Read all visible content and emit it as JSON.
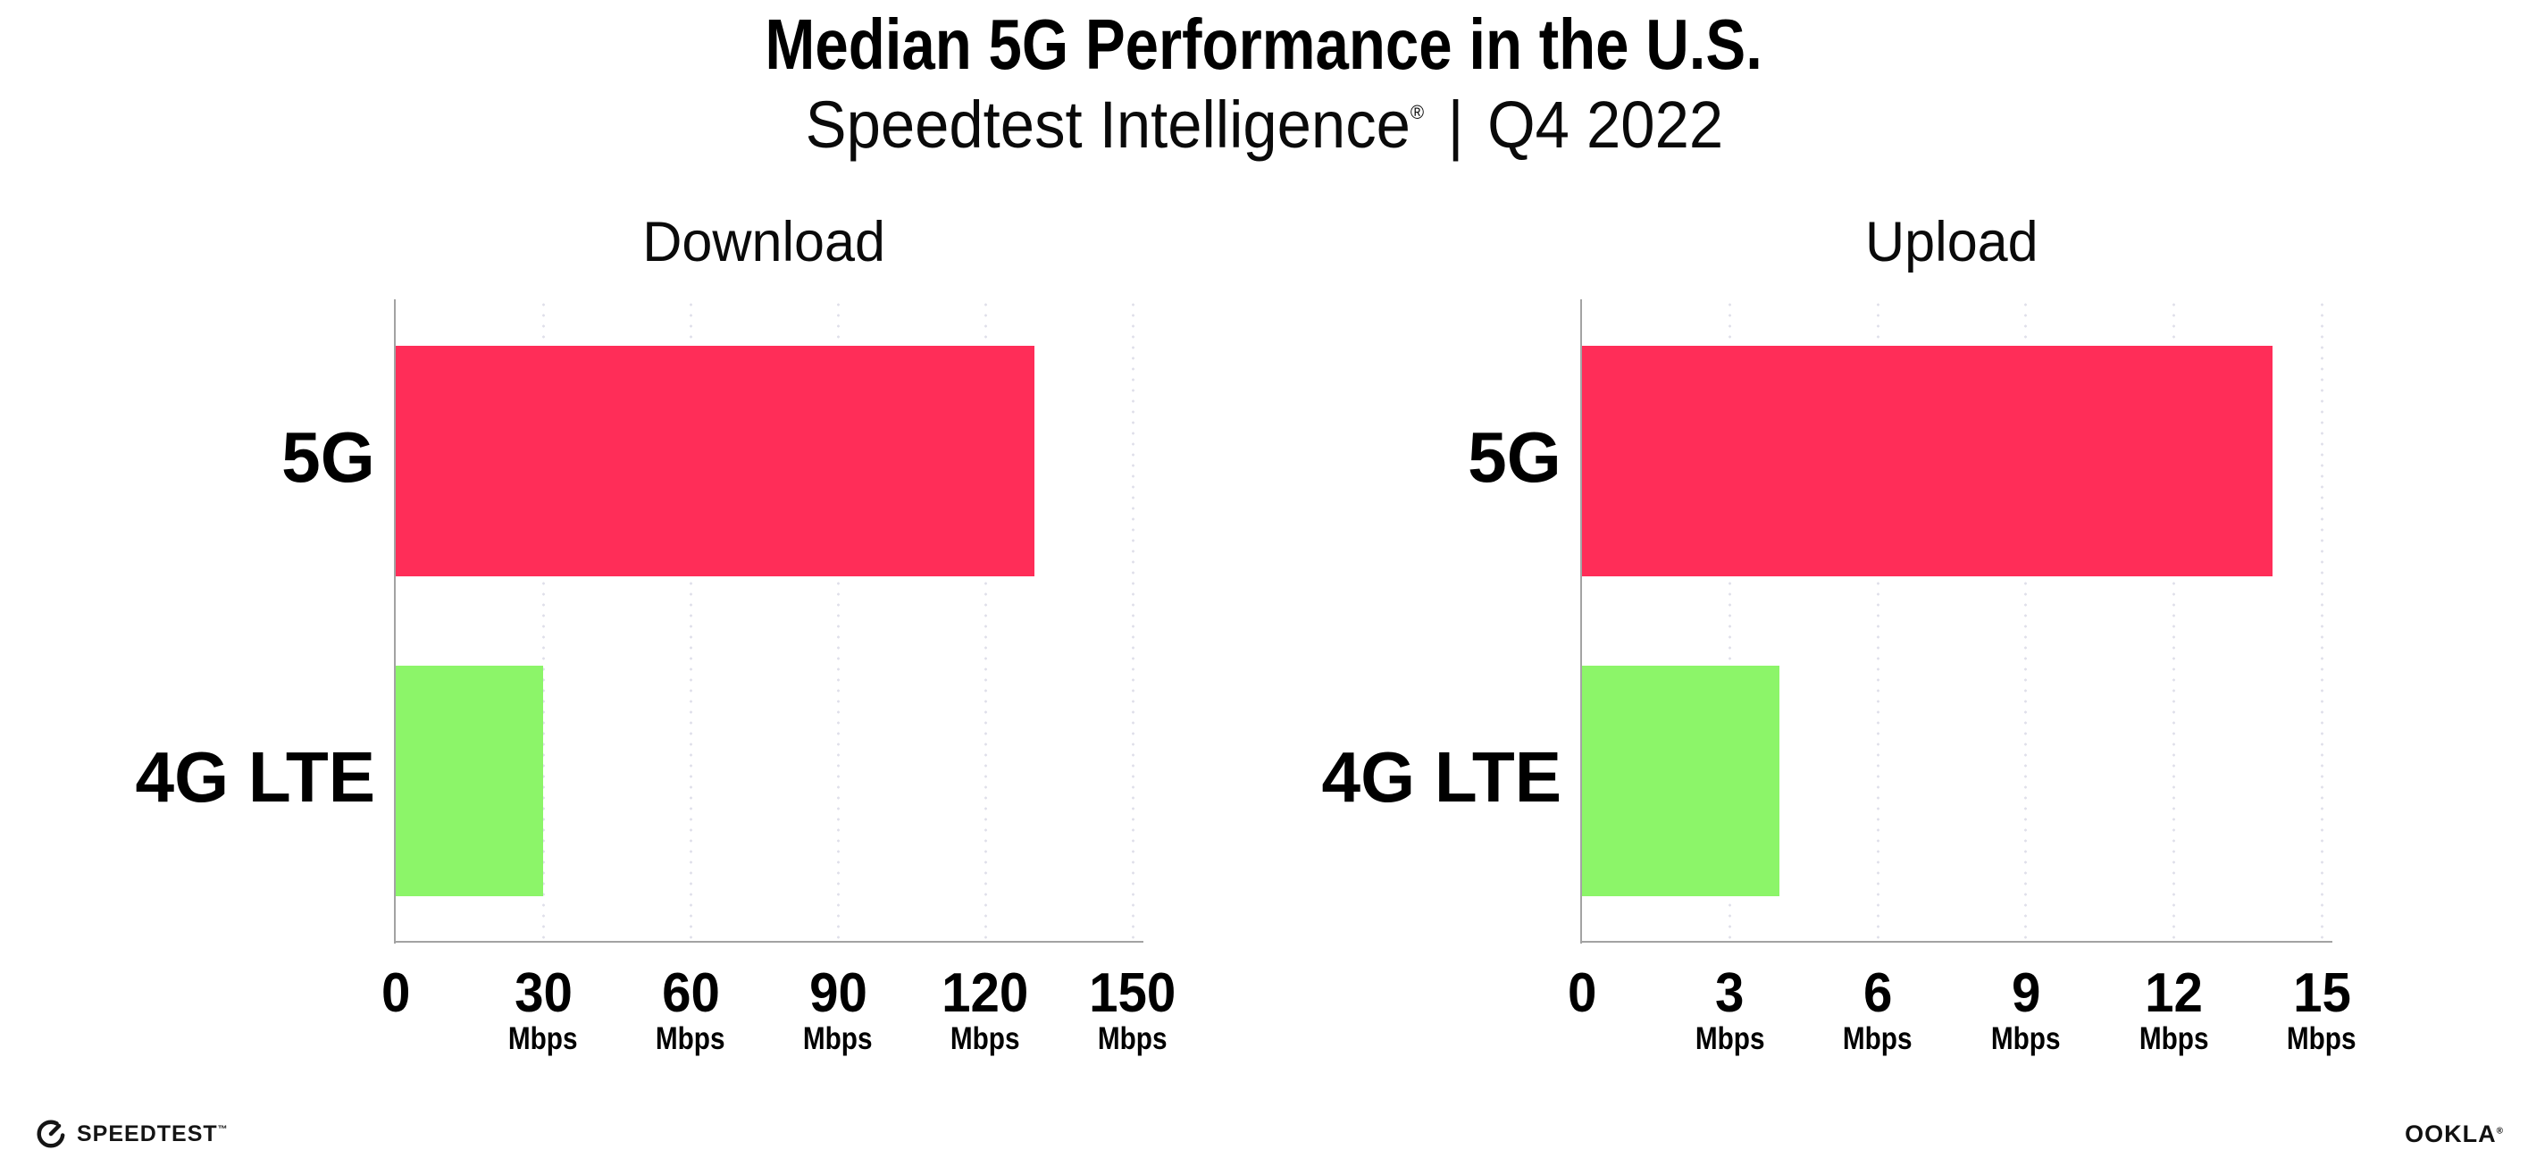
{
  "page": {
    "title": "Median 5G Performance in the U.S.",
    "subtitle_product": "Speedtest Intelligence",
    "subtitle_reg": "®",
    "subtitle_divider": "|",
    "subtitle_period": "Q4 2022"
  },
  "footer": {
    "speedtest_label": "SPEEDTEST",
    "speedtest_tm": "™",
    "ookla_label": "OOKLA",
    "ookla_reg": "®"
  },
  "colors": {
    "bar_5g": "#ff2d58",
    "bar_4g_lte": "#8cf569",
    "axis": "#a3a3a3",
    "gridline": "#dfdfea",
    "text": "#000000"
  },
  "chart_data": [
    {
      "type": "bar",
      "orientation": "horizontal",
      "title": "Download",
      "categories": [
        "5G",
        "4G LTE"
      ],
      "values": [
        130,
        30
      ],
      "unit": "Mbps",
      "xlim": [
        0,
        150
      ],
      "xticks": [
        0,
        30,
        60,
        90,
        120,
        150
      ],
      "grid": "vertical-dotted",
      "legend": "none",
      "bar_colors": [
        "#ff2d58",
        "#8cf569"
      ]
    },
    {
      "type": "bar",
      "orientation": "horizontal",
      "title": "Upload",
      "categories": [
        "5G",
        "4G LTE"
      ],
      "values": [
        14,
        4
      ],
      "unit": "Mbps",
      "xlim": [
        0,
        15
      ],
      "xticks": [
        0,
        3,
        6,
        9,
        12,
        15
      ],
      "grid": "vertical-dotted",
      "legend": "none",
      "bar_colors": [
        "#ff2d58",
        "#8cf569"
      ]
    }
  ]
}
